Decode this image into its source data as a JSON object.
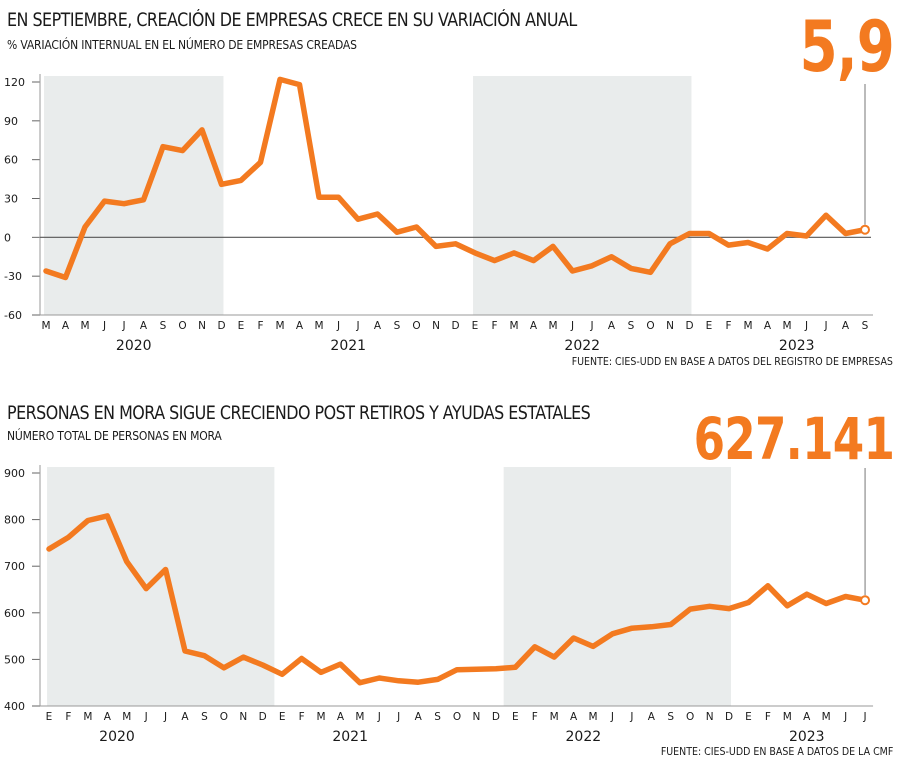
{
  "chart_data": [
    {
      "type": "line",
      "title": "EN SEPTIEMBRE, CREACIÓN DE EMPRESAS CRECE EN SU VARIACIÓN ANUAL",
      "subtitle": "% VARIACIÓN INTERNUAL EN EL NÚMERO DE EMPRESAS CREADAS",
      "highlight_value": "5,9",
      "source": "FUENTE: CIES-UDD EN BASE A DATOS DEL REGISTRO DE EMPRESAS",
      "ylim": [
        -60,
        120
      ],
      "yticks": [
        -60,
        -30,
        0,
        30,
        60,
        90,
        120
      ],
      "month_labels": [
        "M",
        "A",
        "M",
        "J",
        "J",
        "A",
        "S",
        "O",
        "N",
        "D",
        "E",
        "F",
        "M",
        "A",
        "M",
        "J",
        "J",
        "A",
        "S",
        "O",
        "N",
        "D",
        "E",
        "F",
        "M",
        "A",
        "M",
        "J",
        "J",
        "A",
        "S",
        "O",
        "N",
        "D",
        "E",
        "F",
        "M",
        "A",
        "M",
        "J",
        "J",
        "A",
        "S"
      ],
      "year_labels": [
        {
          "label": "2020",
          "center_index": 4.5
        },
        {
          "label": "2021",
          "center_index": 15.5
        },
        {
          "label": "2022",
          "center_index": 27.5
        },
        {
          "label": "2023",
          "center_index": 38.5
        }
      ],
      "shaded_ranges": [
        [
          0,
          9
        ],
        [
          22,
          33
        ]
      ],
      "series": [
        {
          "color": "#f37a20",
          "values": [
            -26,
            -31,
            8,
            28,
            26,
            29,
            70,
            67,
            83,
            41,
            44,
            58,
            122,
            118,
            31,
            31,
            14,
            18,
            4,
            8,
            -7,
            -5,
            -12,
            -18,
            -12,
            -18,
            -7,
            -26,
            -22,
            -15,
            -24,
            -27,
            -5,
            3,
            3,
            -6,
            -4,
            -9,
            3,
            1,
            17,
            3,
            5.9
          ]
        }
      ]
    },
    {
      "type": "line",
      "title": "PERSONAS EN MORA SIGUE CRECIENDO POST RETIROS Y AYUDAS ESTATALES",
      "subtitle": "NÚMERO TOTAL DE PERSONAS EN MORA",
      "highlight_value": "627.141",
      "source": "FUENTE: CIES-UDD EN BASE A DATOS DE LA CMF",
      "ylim": [
        400,
        900
      ],
      "yticks": [
        400,
        500,
        600,
        700,
        800,
        900
      ],
      "month_labels": [
        "E",
        "F",
        "M",
        "A",
        "M",
        "J",
        "J",
        "A",
        "S",
        "O",
        "N",
        "D",
        "E",
        "F",
        "M",
        "A",
        "M",
        "J",
        "J",
        "A",
        "S",
        "O",
        "N",
        "D",
        "E",
        "F",
        "M",
        "A",
        "M",
        "J",
        "J",
        "A",
        "S",
        "O",
        "N",
        "D",
        "E",
        "F",
        "M",
        "A",
        "M",
        "J",
        "J"
      ],
      "year_labels": [
        {
          "label": "2020",
          "center_index": 3.5
        },
        {
          "label": "2021",
          "center_index": 15.5
        },
        {
          "label": "2022",
          "center_index": 27.5
        },
        {
          "label": "2023",
          "center_index": 39
        }
      ],
      "shaded_ranges": [
        [
          0,
          11.5
        ],
        [
          23.5,
          35
        ]
      ],
      "series": [
        {
          "color": "#f37a20",
          "values": [
            737,
            762,
            798,
            808,
            710,
            652,
            693,
            518,
            508,
            482,
            505,
            488,
            468,
            502,
            472,
            490,
            450,
            460,
            454,
            451,
            457,
            478,
            479,
            480,
            483,
            527,
            505,
            546,
            528,
            555,
            567,
            570,
            575,
            608,
            614,
            609,
            622,
            658,
            615,
            640,
            620,
            635,
            627
          ]
        }
      ]
    }
  ]
}
